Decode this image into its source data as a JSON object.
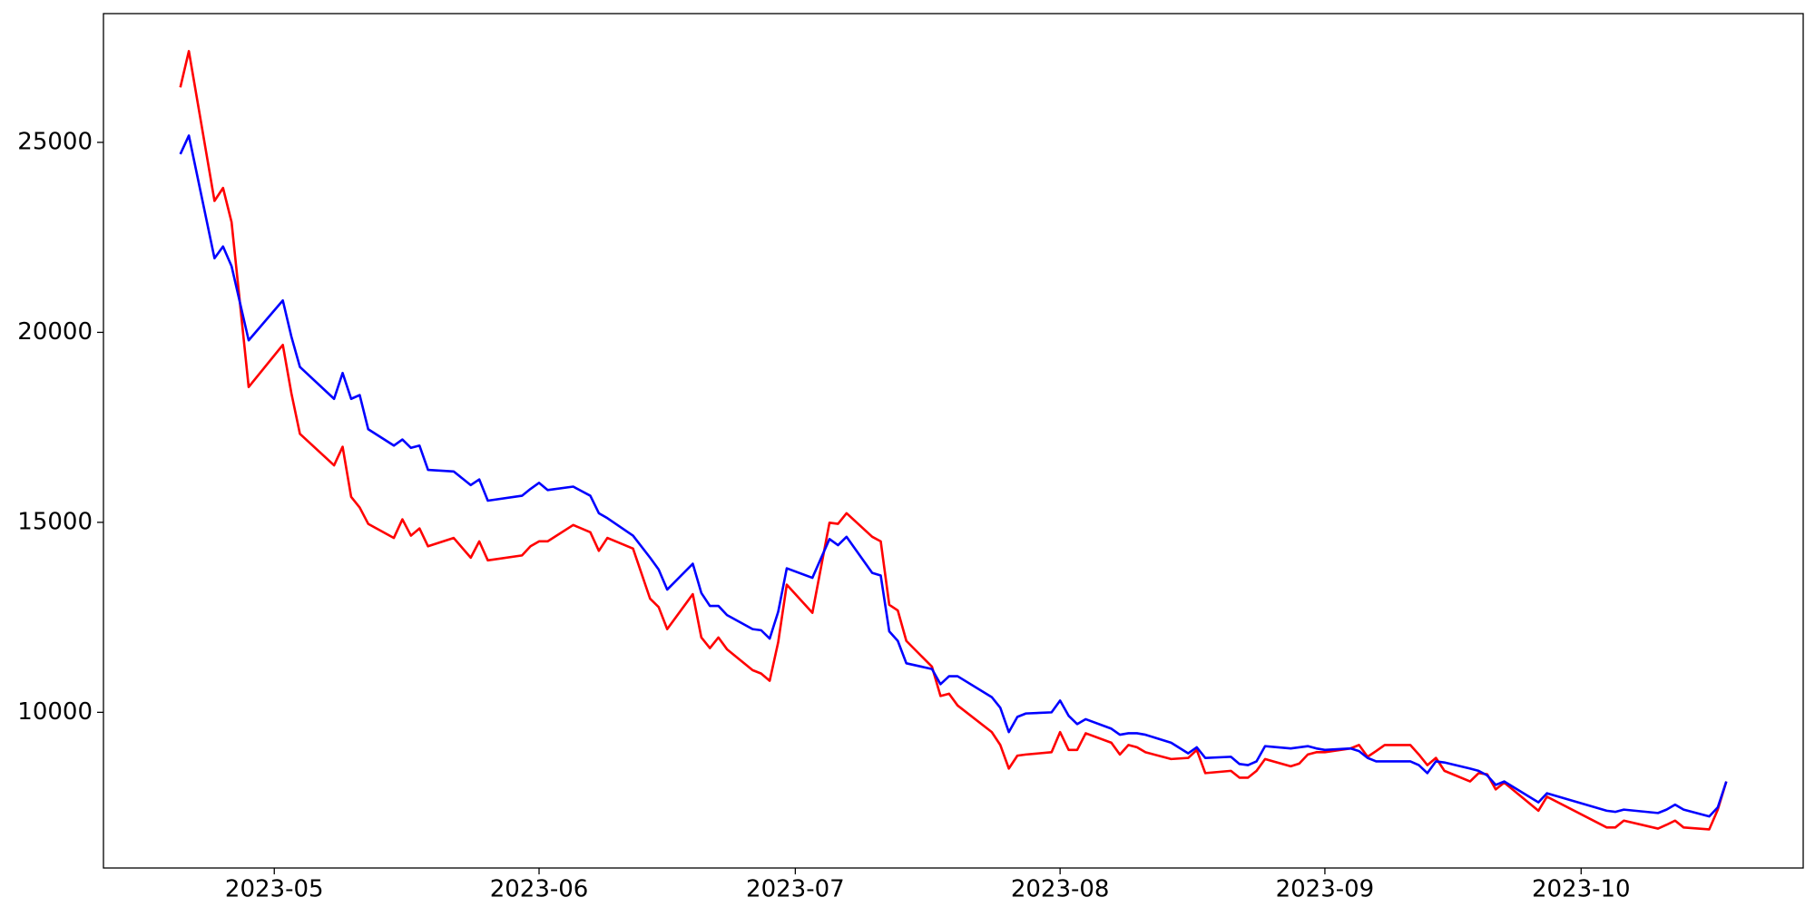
{
  "chart_data": {
    "type": "line",
    "x": [
      "2023-04-20",
      "2023-04-21",
      "2023-04-24",
      "2023-04-25",
      "2023-04-26",
      "2023-04-28",
      "2023-05-02",
      "2023-05-03",
      "2023-05-04",
      "2023-05-08",
      "2023-05-09",
      "2023-05-10",
      "2023-05-11",
      "2023-05-12",
      "2023-05-15",
      "2023-05-16",
      "2023-05-17",
      "2023-05-18",
      "2023-05-19",
      "2023-05-22",
      "2023-05-24",
      "2023-05-25",
      "2023-05-26",
      "2023-05-30",
      "2023-05-31",
      "2023-06-01",
      "2023-06-02",
      "2023-06-05",
      "2023-06-07",
      "2023-06-08",
      "2023-06-09",
      "2023-06-12",
      "2023-06-14",
      "2023-06-15",
      "2023-06-16",
      "2023-06-19",
      "2023-06-20",
      "2023-06-21",
      "2023-06-22",
      "2023-06-23",
      "2023-06-26",
      "2023-06-27",
      "2023-06-28",
      "2023-06-29",
      "2023-06-30",
      "2023-07-03",
      "2023-07-05",
      "2023-07-06",
      "2023-07-07",
      "2023-07-10",
      "2023-07-11",
      "2023-07-12",
      "2023-07-13",
      "2023-07-14",
      "2023-07-17",
      "2023-07-18",
      "2023-07-19",
      "2023-07-20",
      "2023-07-24",
      "2023-07-25",
      "2023-07-26",
      "2023-07-27",
      "2023-07-28",
      "2023-07-31",
      "2023-08-01",
      "2023-08-02",
      "2023-08-03",
      "2023-08-04",
      "2023-08-07",
      "2023-08-08",
      "2023-08-09",
      "2023-08-10",
      "2023-08-11",
      "2023-08-14",
      "2023-08-16",
      "2023-08-17",
      "2023-08-18",
      "2023-08-21",
      "2023-08-22",
      "2023-08-23",
      "2023-08-24",
      "2023-08-25",
      "2023-08-28",
      "2023-08-29",
      "2023-08-30",
      "2023-08-31",
      "2023-09-01",
      "2023-09-04",
      "2023-09-05",
      "2023-09-06",
      "2023-09-07",
      "2023-09-08",
      "2023-09-11",
      "2023-09-12",
      "2023-09-13",
      "2023-09-14",
      "2023-09-15",
      "2023-09-18",
      "2023-09-19",
      "2023-09-20",
      "2023-09-21",
      "2023-09-22",
      "2023-09-26",
      "2023-09-27",
      "2023-10-04",
      "2023-10-05",
      "2023-10-06",
      "2023-10-10",
      "2023-10-11",
      "2023-10-12",
      "2023-10-13",
      "2023-10-16",
      "2023-10-17",
      "2023-10-18"
    ],
    "series": [
      {
        "color": "#ff0000",
        "values": [
          26447,
          27402,
          23460,
          23800,
          22900,
          18562,
          19670,
          18400,
          17330,
          16500,
          16990,
          15670,
          15390,
          14960,
          14590,
          15080,
          14650,
          14840,
          14370,
          14590,
          14070,
          14500,
          14000,
          14130,
          14370,
          14500,
          14500,
          14930,
          14740,
          14250,
          14590,
          14310,
          12990,
          12770,
          12190,
          13110,
          11970,
          11690,
          11970,
          11660,
          11110,
          11020,
          10830,
          11850,
          13360,
          12620,
          14990,
          14960,
          15240,
          14620,
          14500,
          12830,
          12680,
          11880,
          11200,
          10430,
          10490,
          10180,
          9480,
          9140,
          8520,
          8860,
          8890,
          8950,
          9480,
          9010,
          9010,
          9450,
          9200,
          8890,
          9140,
          9080,
          8950,
          8770,
          8800,
          9010,
          8400,
          8460,
          8280,
          8280,
          8460,
          8770,
          8580,
          8650,
          8890,
          8950,
          8950,
          9050,
          9140,
          8830,
          8980,
          9140,
          9140,
          8890,
          8610,
          8800,
          8460,
          8180,
          8400,
          8370,
          7970,
          8150,
          7410,
          7780,
          6970,
          6970,
          7150,
          6940,
          7040,
          7150,
          6970,
          6920,
          7440,
          8180
        ]
      },
      {
        "color": "#0000ff",
        "values": [
          24690,
          25180,
          21950,
          22260,
          21740,
          19790,
          20840,
          19890,
          19090,
          18250,
          18930,
          18250,
          18350,
          17450,
          17020,
          17180,
          16960,
          17020,
          16380,
          16340,
          15980,
          16130,
          15570,
          15700,
          15880,
          16040,
          15850,
          15940,
          15700,
          15240,
          15110,
          14650,
          14070,
          13760,
          13230,
          13910,
          13140,
          12800,
          12800,
          12560,
          12190,
          12160,
          11940,
          12650,
          13790,
          13540,
          14560,
          14400,
          14620,
          13670,
          13600,
          12130,
          11880,
          11290,
          11140,
          10740,
          10950,
          10950,
          10400,
          10120,
          9480,
          9880,
          9970,
          10000,
          10310,
          9910,
          9690,
          9820,
          9570,
          9410,
          9450,
          9450,
          9410,
          9200,
          8920,
          9080,
          8800,
          8830,
          8640,
          8610,
          8710,
          9110,
          9050,
          9080,
          9110,
          9050,
          9010,
          9050,
          8980,
          8800,
          8710,
          8710,
          8710,
          8610,
          8400,
          8710,
          8680,
          8520,
          8460,
          8340,
          8090,
          8180,
          7630,
          7870,
          7410,
          7380,
          7440,
          7350,
          7440,
          7570,
          7440,
          7260,
          7500,
          8180
        ]
      }
    ],
    "xlim": [
      "2023-04-11",
      "2023-10-27"
    ],
    "xticks": [
      {
        "value": "2023-05-01",
        "label": "2023-05"
      },
      {
        "value": "2023-06-01",
        "label": "2023-06"
      },
      {
        "value": "2023-07-01",
        "label": "2023-07"
      },
      {
        "value": "2023-08-01",
        "label": "2023-08"
      },
      {
        "value": "2023-09-01",
        "label": "2023-09"
      },
      {
        "value": "2023-10-01",
        "label": "2023-10"
      }
    ],
    "ylim": [
      5903,
      28389
    ],
    "yticks": [
      10000,
      15000,
      20000,
      25000
    ],
    "grid": false
  }
}
